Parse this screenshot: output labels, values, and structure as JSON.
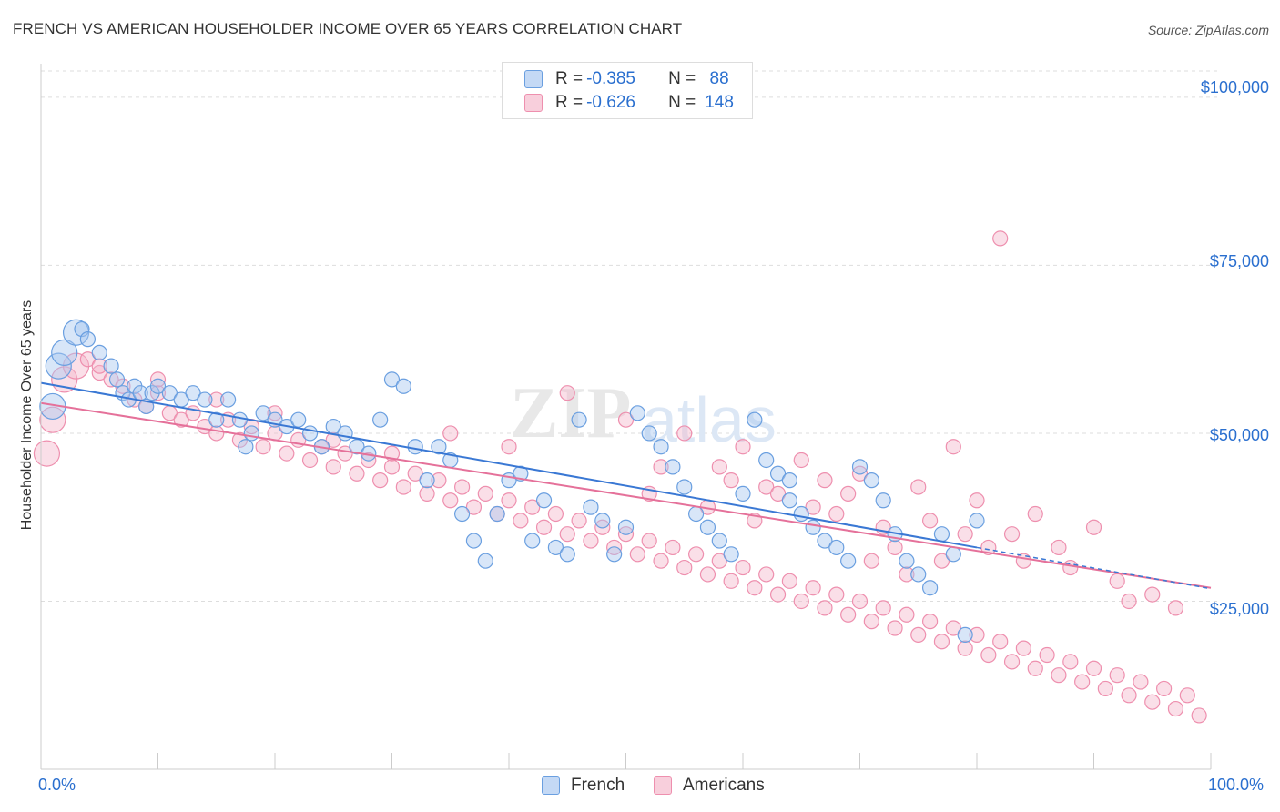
{
  "header": {
    "title": "FRENCH VS AMERICAN HOUSEHOLDER INCOME OVER 65 YEARS CORRELATION CHART",
    "source": "Source: ZipAtlas.com"
  },
  "legend": {
    "rows": [
      {
        "r_label": "R = ",
        "r_value": "-0.385",
        "n_label": "N = ",
        "n_value": " 88"
      },
      {
        "r_label": "R = ",
        "r_value": "-0.626",
        "n_label": "N = ",
        "n_value": "148"
      }
    ],
    "bottom": [
      "French",
      "Americans"
    ]
  },
  "axes": {
    "ylabel": "Householder Income Over 65 years",
    "x_min_label": "0.0%",
    "x_max_label": "100.0%",
    "y_ticks": [
      "$100,000",
      "$75,000",
      "$50,000",
      "$25,000"
    ]
  },
  "colors": {
    "french_fill": "#a9c8f0",
    "french_stroke": "#6a9fe0",
    "french_line": "#3a78d4",
    "american_fill": "#f5b7cb",
    "american_stroke": "#ee8fae",
    "american_line": "#e5719a",
    "axis_text": "#2a6fcf",
    "grid": "#dddddd"
  },
  "chart_data": {
    "type": "scatter",
    "xlabel": "",
    "ylabel": "Householder Income Over 65 years",
    "xlim": [
      0,
      100
    ],
    "ylim": [
      0,
      105000
    ],
    "y_ticks": [
      25000,
      50000,
      75000,
      100000
    ],
    "grid": true,
    "series": [
      {
        "name": "French",
        "points": [
          [
            1,
            54000
          ],
          [
            1.5,
            60000
          ],
          [
            2,
            62000
          ],
          [
            3,
            65000
          ],
          [
            3.5,
            65500
          ],
          [
            4,
            64000
          ],
          [
            5,
            62000
          ],
          [
            6,
            60000
          ],
          [
            6.5,
            58000
          ],
          [
            7,
            56000
          ],
          [
            7.5,
            55000
          ],
          [
            8,
            57000
          ],
          [
            8.5,
            56000
          ],
          [
            9,
            54000
          ],
          [
            9.5,
            56000
          ],
          [
            10,
            57000
          ],
          [
            11,
            56000
          ],
          [
            12,
            55000
          ],
          [
            13,
            56000
          ],
          [
            14,
            55000
          ],
          [
            15,
            52000
          ],
          [
            16,
            55000
          ],
          [
            17,
            52000
          ],
          [
            17.5,
            48000
          ],
          [
            18,
            50000
          ],
          [
            19,
            53000
          ],
          [
            20,
            52000
          ],
          [
            21,
            51000
          ],
          [
            22,
            52000
          ],
          [
            23,
            50000
          ],
          [
            24,
            48000
          ],
          [
            25,
            51000
          ],
          [
            26,
            50000
          ],
          [
            27,
            48000
          ],
          [
            28,
            47000
          ],
          [
            29,
            52000
          ],
          [
            30,
            58000
          ],
          [
            31,
            57000
          ],
          [
            32,
            48000
          ],
          [
            33,
            43000
          ],
          [
            34,
            48000
          ],
          [
            35,
            46000
          ],
          [
            36,
            38000
          ],
          [
            37,
            34000
          ],
          [
            38,
            31000
          ],
          [
            39,
            38000
          ],
          [
            40,
            43000
          ],
          [
            41,
            44000
          ],
          [
            42,
            34000
          ],
          [
            43,
            40000
          ],
          [
            44,
            33000
          ],
          [
            45,
            32000
          ],
          [
            46,
            52000
          ],
          [
            47,
            39000
          ],
          [
            48,
            37000
          ],
          [
            49,
            32000
          ],
          [
            50,
            36000
          ],
          [
            51,
            53000
          ],
          [
            52,
            50000
          ],
          [
            53,
            48000
          ],
          [
            54,
            45000
          ],
          [
            55,
            42000
          ],
          [
            56,
            38000
          ],
          [
            57,
            36000
          ],
          [
            58,
            34000
          ],
          [
            59,
            32000
          ],
          [
            60,
            41000
          ],
          [
            61,
            52000
          ],
          [
            62,
            46000
          ],
          [
            63,
            44000
          ],
          [
            64,
            40000
          ],
          [
            65,
            38000
          ],
          [
            66,
            36000
          ],
          [
            67,
            34000
          ],
          [
            68,
            33000
          ],
          [
            69,
            31000
          ],
          [
            70,
            45000
          ],
          [
            71,
            43000
          ],
          [
            72,
            40000
          ],
          [
            73,
            35000
          ],
          [
            74,
            31000
          ],
          [
            75,
            29000
          ],
          [
            76,
            27000
          ],
          [
            77,
            35000
          ],
          [
            78,
            32000
          ],
          [
            79,
            20000
          ],
          [
            80,
            37000
          ],
          [
            64,
            43000
          ]
        ]
      },
      {
        "name": "Americans",
        "points": [
          [
            0.5,
            47000
          ],
          [
            1,
            52000
          ],
          [
            2,
            58000
          ],
          [
            3,
            60000
          ],
          [
            4,
            61000
          ],
          [
            5,
            59000
          ],
          [
            6,
            58000
          ],
          [
            7,
            57000
          ],
          [
            8,
            55000
          ],
          [
            9,
            54000
          ],
          [
            10,
            56000
          ],
          [
            11,
            53000
          ],
          [
            12,
            52000
          ],
          [
            13,
            53000
          ],
          [
            14,
            51000
          ],
          [
            15,
            50000
          ],
          [
            16,
            52000
          ],
          [
            17,
            49000
          ],
          [
            18,
            51000
          ],
          [
            19,
            48000
          ],
          [
            20,
            50000
          ],
          [
            21,
            47000
          ],
          [
            22,
            49000
          ],
          [
            23,
            46000
          ],
          [
            24,
            48000
          ],
          [
            25,
            45000
          ],
          [
            26,
            47000
          ],
          [
            27,
            44000
          ],
          [
            28,
            46000
          ],
          [
            29,
            43000
          ],
          [
            30,
            45000
          ],
          [
            31,
            42000
          ],
          [
            32,
            44000
          ],
          [
            33,
            41000
          ],
          [
            34,
            43000
          ],
          [
            35,
            40000
          ],
          [
            36,
            42000
          ],
          [
            37,
            39000
          ],
          [
            38,
            41000
          ],
          [
            39,
            38000
          ],
          [
            40,
            40000
          ],
          [
            41,
            37000
          ],
          [
            42,
            39000
          ],
          [
            43,
            36000
          ],
          [
            44,
            38000
          ],
          [
            45,
            35000
          ],
          [
            46,
            37000
          ],
          [
            47,
            34000
          ],
          [
            48,
            36000
          ],
          [
            49,
            33000
          ],
          [
            50,
            35000
          ],
          [
            51,
            32000
          ],
          [
            52,
            34000
          ],
          [
            53,
            31000
          ],
          [
            54,
            33000
          ],
          [
            55,
            30000
          ],
          [
            56,
            32000
          ],
          [
            57,
            29000
          ],
          [
            58,
            31000
          ],
          [
            59,
            28000
          ],
          [
            60,
            30000
          ],
          [
            61,
            27000
          ],
          [
            62,
            29000
          ],
          [
            63,
            26000
          ],
          [
            64,
            28000
          ],
          [
            65,
            25000
          ],
          [
            66,
            27000
          ],
          [
            67,
            24000
          ],
          [
            68,
            26000
          ],
          [
            69,
            23000
          ],
          [
            70,
            25000
          ],
          [
            71,
            22000
          ],
          [
            72,
            24000
          ],
          [
            73,
            21000
          ],
          [
            74,
            23000
          ],
          [
            75,
            20000
          ],
          [
            76,
            22000
          ],
          [
            77,
            19000
          ],
          [
            78,
            21000
          ],
          [
            79,
            18000
          ],
          [
            80,
            20000
          ],
          [
            81,
            17000
          ],
          [
            82,
            19000
          ],
          [
            83,
            16000
          ],
          [
            84,
            18000
          ],
          [
            85,
            15000
          ],
          [
            86,
            17000
          ],
          [
            87,
            14000
          ],
          [
            88,
            16000
          ],
          [
            89,
            13000
          ],
          [
            90,
            15000
          ],
          [
            91,
            12000
          ],
          [
            92,
            14000
          ],
          [
            93,
            11000
          ],
          [
            94,
            13000
          ],
          [
            95,
            10000
          ],
          [
            96,
            12000
          ],
          [
            97,
            9000
          ],
          [
            98,
            11000
          ],
          [
            99,
            8000
          ],
          [
            45,
            56000
          ],
          [
            50,
            52000
          ],
          [
            55,
            50000
          ],
          [
            60,
            48000
          ],
          [
            65,
            46000
          ],
          [
            70,
            44000
          ],
          [
            75,
            42000
          ],
          [
            80,
            40000
          ],
          [
            85,
            38000
          ],
          [
            90,
            36000
          ],
          [
            35,
            50000
          ],
          [
            40,
            48000
          ],
          [
            30,
            47000
          ],
          [
            25,
            49000
          ],
          [
            20,
            53000
          ],
          [
            15,
            55000
          ],
          [
            10,
            58000
          ],
          [
            5,
            60000
          ],
          [
            52,
            41000
          ],
          [
            58,
            45000
          ],
          [
            62,
            42000
          ],
          [
            68,
            38000
          ],
          [
            72,
            36000
          ],
          [
            78,
            48000
          ],
          [
            82,
            79000
          ],
          [
            88,
            30000
          ],
          [
            92,
            28000
          ],
          [
            95,
            26000
          ],
          [
            57,
            39000
          ],
          [
            63,
            41000
          ],
          [
            67,
            43000
          ],
          [
            73,
            33000
          ],
          [
            77,
            31000
          ],
          [
            83,
            35000
          ],
          [
            87,
            33000
          ],
          [
            93,
            25000
          ],
          [
            97,
            24000
          ],
          [
            53,
            45000
          ],
          [
            59,
            43000
          ],
          [
            61,
            37000
          ],
          [
            66,
            39000
          ],
          [
            69,
            41000
          ],
          [
            71,
            31000
          ],
          [
            74,
            29000
          ],
          [
            76,
            37000
          ],
          [
            79,
            35000
          ],
          [
            81,
            33000
          ],
          [
            84,
            31000
          ]
        ]
      }
    ],
    "trend_lines": [
      {
        "series": "French",
        "from": [
          0,
          57500
        ],
        "to": [
          80,
          33000
        ]
      },
      {
        "series": "Americans",
        "from": [
          0,
          54500
        ],
        "to": [
          100,
          27000
        ]
      }
    ]
  }
}
